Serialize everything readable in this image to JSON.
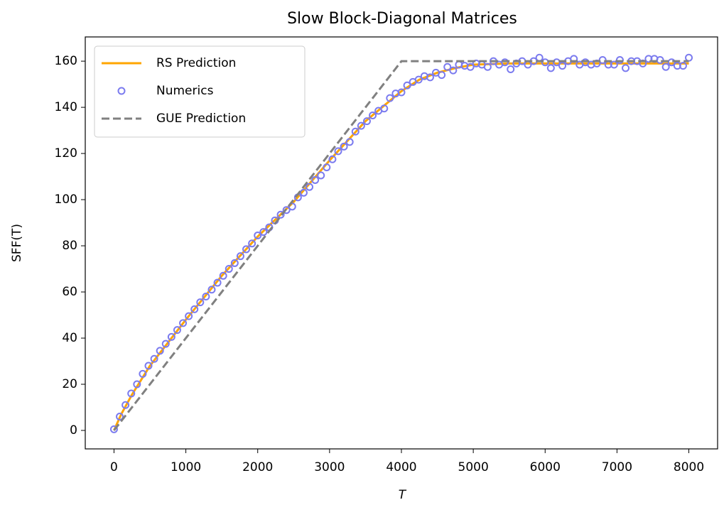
{
  "chart_data": {
    "type": "line",
    "title": "Slow Block-Diagonal Matrices",
    "xlabel": "T",
    "ylabel": "SFF(T)",
    "xlim": [
      -400,
      8400
    ],
    "ylim": [
      -8,
      170.5
    ],
    "xticks": [
      0,
      1000,
      2000,
      3000,
      4000,
      5000,
      6000,
      7000,
      8000
    ],
    "yticks": [
      0,
      20,
      40,
      60,
      80,
      100,
      120,
      140,
      160
    ],
    "legend": "upper left",
    "series": [
      {
        "name": "RS Prediction",
        "color": "#ffa500",
        "style": "line",
        "x": [
          0,
          100,
          250,
          500,
          1000,
          1500,
          2000,
          2500,
          3000,
          3500,
          4000,
          4250,
          4500,
          4750,
          5000,
          5500,
          6000,
          7000,
          8000
        ],
        "values": [
          0,
          7,
          15.5,
          28,
          48,
          67,
          84,
          99,
          117,
          134,
          147,
          152,
          155,
          157,
          158.5,
          159,
          159,
          159,
          159
        ]
      },
      {
        "name": "Numerics",
        "color": "#7b7bef",
        "style": "markers",
        "x": [
          0,
          80,
          160,
          240,
          320,
          400,
          480,
          560,
          640,
          720,
          800,
          880,
          960,
          1040,
          1120,
          1200,
          1280,
          1360,
          1440,
          1520,
          1600,
          1680,
          1760,
          1840,
          1920,
          2000,
          2080,
          2160,
          2240,
          2320,
          2400,
          2480,
          2560,
          2640,
          2720,
          2800,
          2880,
          2960,
          3040,
          3120,
          3200,
          3280,
          3360,
          3440,
          3520,
          3600,
          3680,
          3760,
          3840,
          3920,
          4000,
          4080,
          4160,
          4240,
          4320,
          4400,
          4480,
          4560,
          4640,
          4720,
          4800,
          4880,
          4960,
          5040,
          5120,
          5200,
          5280,
          5360,
          5440,
          5520,
          5600,
          5680,
          5760,
          5840,
          5920,
          6000,
          6080,
          6160,
          6240,
          6320,
          6400,
          6480,
          6560,
          6640,
          6720,
          6800,
          6880,
          6960,
          7040,
          7120,
          7200,
          7280,
          7360,
          7440,
          7520,
          7600,
          7680,
          7760,
          7840,
          7920,
          8000
        ],
        "values": [
          0.5,
          6,
          11,
          16,
          20,
          24.5,
          28,
          31,
          34.5,
          37.5,
          40.5,
          43.5,
          46.5,
          49.5,
          52.5,
          55.5,
          58,
          61,
          64,
          67,
          70,
          72.5,
          75.5,
          78.5,
          81,
          84.5,
          86,
          88,
          91,
          93.5,
          95.5,
          97,
          101,
          103,
          105.5,
          108.5,
          110.5,
          114,
          117.5,
          121,
          123,
          125,
          129.5,
          132,
          134,
          136.5,
          138.5,
          139.5,
          144,
          146,
          146.5,
          149.5,
          151,
          152,
          153.5,
          153,
          155,
          154,
          157.5,
          156,
          158.5,
          158,
          157.5,
          159,
          158.5,
          157.5,
          160,
          158.5,
          159.5,
          156.5,
          159,
          160,
          158.5,
          160,
          161.5,
          159.5,
          157,
          159.5,
          158,
          160,
          161,
          158.5,
          159.5,
          158.5,
          159,
          160.5,
          158.5,
          158.5,
          160.5,
          157,
          160,
          160,
          159,
          161,
          161,
          160.5,
          157.5,
          159.5,
          158,
          158,
          161.5
        ]
      },
      {
        "name": "GUE Prediction",
        "color": "#808080",
        "style": "dashed",
        "x": [
          0,
          4000,
          8000
        ],
        "values": [
          0,
          160,
          160
        ]
      }
    ]
  }
}
